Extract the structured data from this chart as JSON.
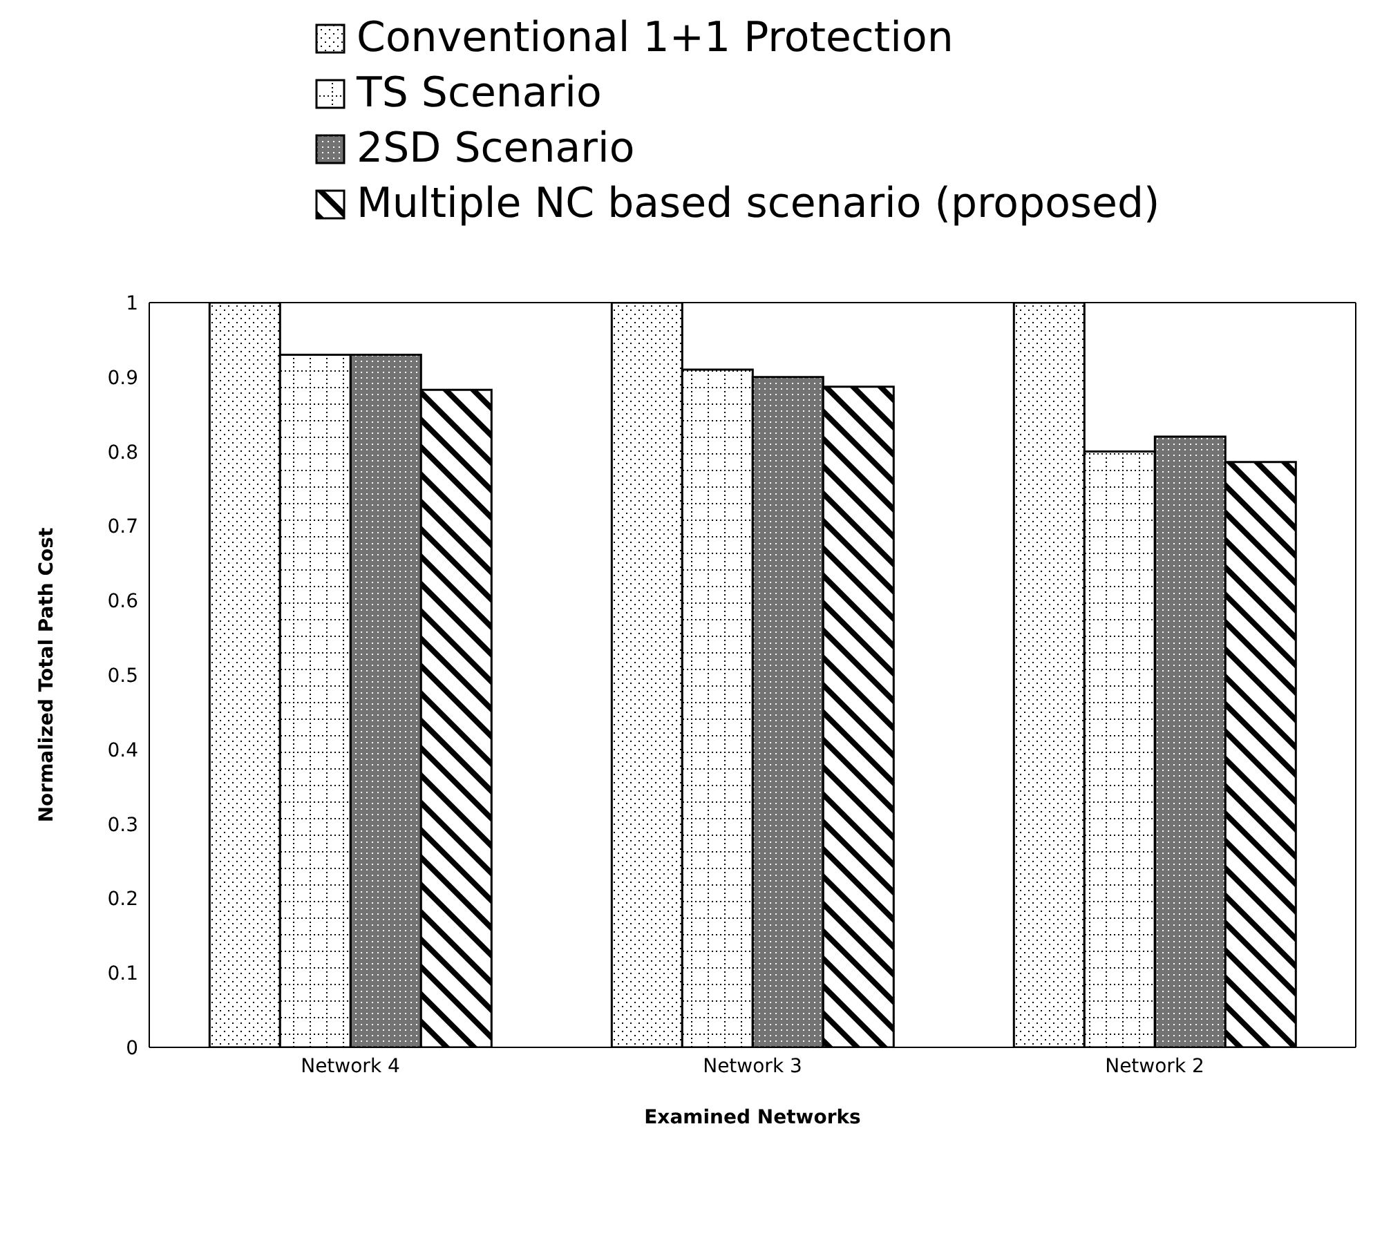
{
  "chart_data": {
    "type": "bar",
    "xlabel": "Examined Networks",
    "ylabel": "Normalized Total Path Cost",
    "categories": [
      "Network 4",
      "Network 3",
      "Network 2"
    ],
    "series": [
      {
        "name": "Conventional 1+1 Protection",
        "color": "#000000",
        "values": [
          1,
          1,
          1
        ]
      },
      {
        "name": "TS Scenario",
        "color": "#000000",
        "values": [
          0.93,
          0.91,
          0.8
        ]
      },
      {
        "name": "2SD Scenario",
        "color": "#000000",
        "values": [
          0.93,
          0.9,
          0.82
        ]
      },
      {
        "name": "Multiple NC based scenario (proposed)",
        "color": "#000000",
        "values": [
          0.883,
          0.887,
          0.786
        ]
      }
    ],
    "ylim": [
      0,
      1
    ],
    "yticks": [
      0,
      0.1,
      0.2,
      0.3,
      0.4,
      0.5,
      0.6,
      0.7,
      0.8,
      0.9,
      1
    ],
    "legend": "top"
  }
}
